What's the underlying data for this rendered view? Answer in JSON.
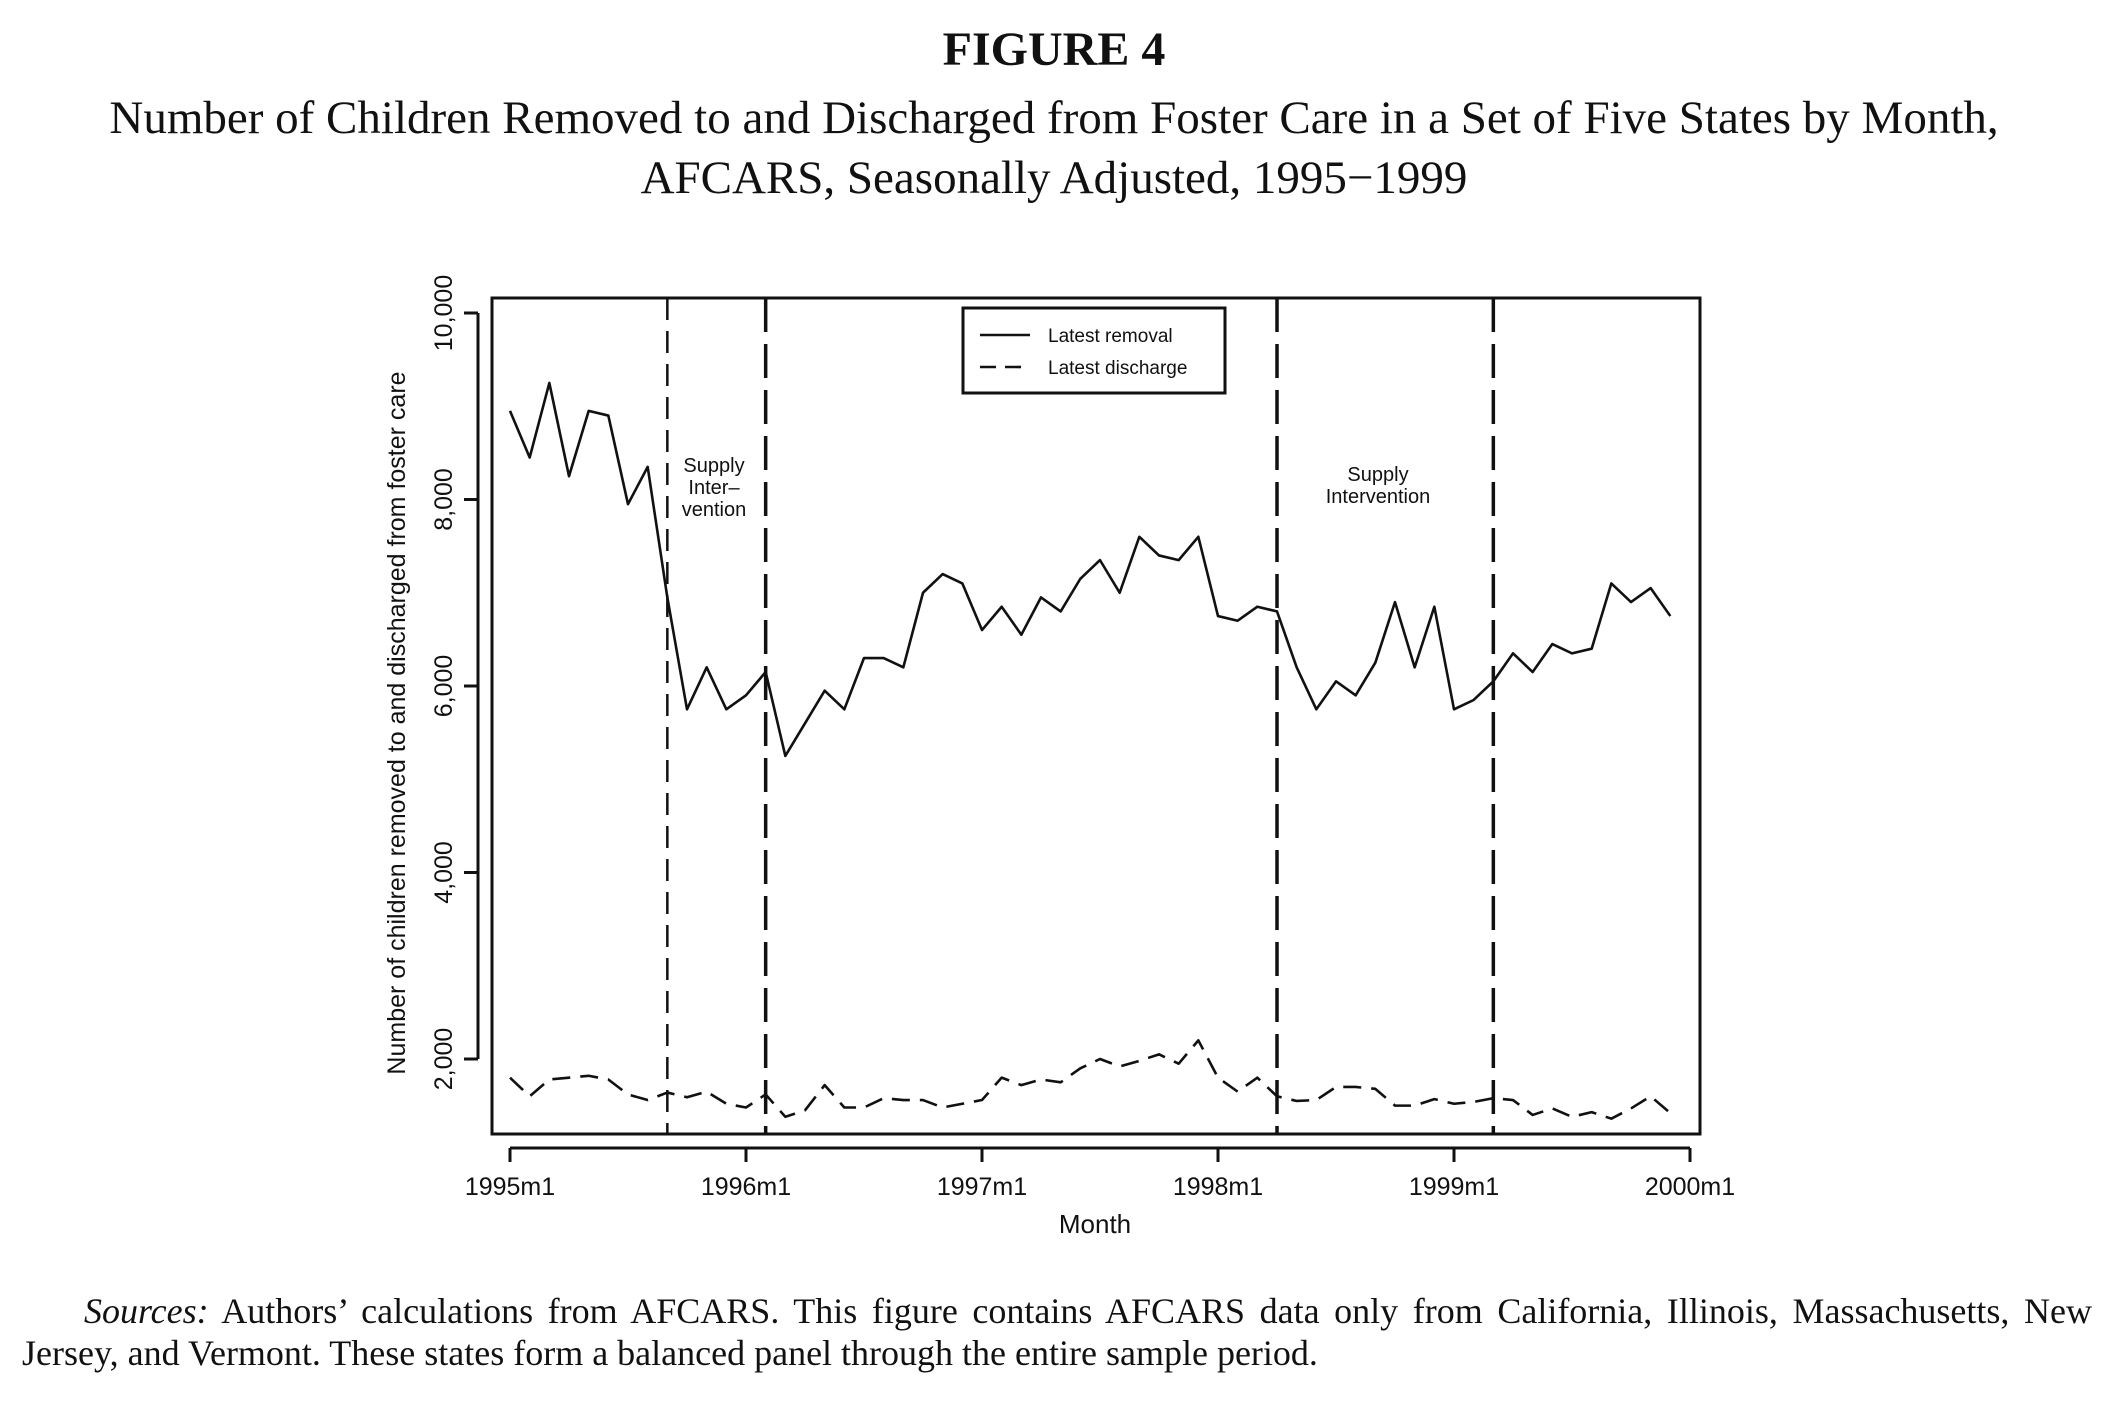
{
  "figure_label": "FIGURE 4",
  "figure_title": "Number of Children Removed to and Discharged from Foster Care in a Set of Five States by Month, AFCARS, Seasonally Adjusted, 1995−1999",
  "sources_label": "Sources:",
  "sources_text": " Authors’ calculations from AFCARS. This figure contains AFCARS data only from California, Illinois, Massachusetts, New Jersey, and Vermont. These states form a balanced panel through the entire sample period.",
  "chart_data": {
    "type": "line",
    "xlabel": "Month",
    "ylabel": "Number of children removed to and discharged from foster care",
    "xlim": [
      0,
      60
    ],
    "ylim": [
      1200,
      10200
    ],
    "x_ticks": [
      0,
      12,
      24,
      36,
      48,
      60
    ],
    "x_tick_labels": [
      "1995m1",
      "1996m1",
      "1997m1",
      "1998m1",
      "1999m1",
      "2000m1"
    ],
    "y_ticks": [
      2000,
      4000,
      6000,
      8000,
      10000
    ],
    "y_tick_labels": [
      "2,000",
      "4,000",
      "6,000",
      "8,000",
      "10,000"
    ],
    "legend_position": "top-center",
    "grid": false,
    "series": [
      {
        "name": "Latest removal",
        "style": "solid",
        "values": [
          8950,
          8450,
          9250,
          8250,
          8950,
          8900,
          7950,
          8350,
          6950,
          5750,
          6200,
          5750,
          5900,
          6150,
          5250,
          5600,
          5950,
          5750,
          6300,
          6300,
          6200,
          7000,
          7200,
          7100,
          6600,
          6850,
          6550,
          6950,
          6800,
          7150,
          7350,
          7000,
          7600,
          7400,
          7350,
          7600,
          6750,
          6700,
          6850,
          6800,
          6200,
          5750,
          6050,
          5900,
          6250,
          6900,
          6200,
          6850,
          5750,
          5850,
          6050,
          6350,
          6150,
          6450,
          6350,
          6400,
          7100,
          6900,
          7050,
          6750
        ]
      },
      {
        "name": "Latest discharge",
        "style": "dashed",
        "values": [
          1800,
          1600,
          1780,
          1800,
          1820,
          1780,
          1620,
          1560,
          1640,
          1590,
          1650,
          1520,
          1480,
          1620,
          1380,
          1450,
          1720,
          1480,
          1480,
          1580,
          1560,
          1560,
          1480,
          1520,
          1560,
          1800,
          1720,
          1780,
          1750,
          1900,
          2000,
          1920,
          1980,
          2050,
          1950,
          2200,
          1800,
          1650,
          1800,
          1600,
          1550,
          1560,
          1700,
          1700,
          1680,
          1500,
          1500,
          1570,
          1520,
          1540,
          1580,
          1560,
          1400,
          1470,
          1380,
          1430,
          1360,
          1470,
          1600,
          1420
        ]
      }
    ],
    "reference_lines": [
      {
        "x": 8,
        "style": "dashed"
      },
      {
        "x": 13,
        "style": "long-dashed"
      },
      {
        "x": 39,
        "style": "long-dashed"
      },
      {
        "x": 50,
        "style": "long-dashed"
      }
    ],
    "annotations": [
      {
        "lines": [
          "Supply",
          "Inter–",
          "vention"
        ]
      },
      {
        "lines": [
          "Supply",
          "Intervention"
        ]
      }
    ]
  }
}
